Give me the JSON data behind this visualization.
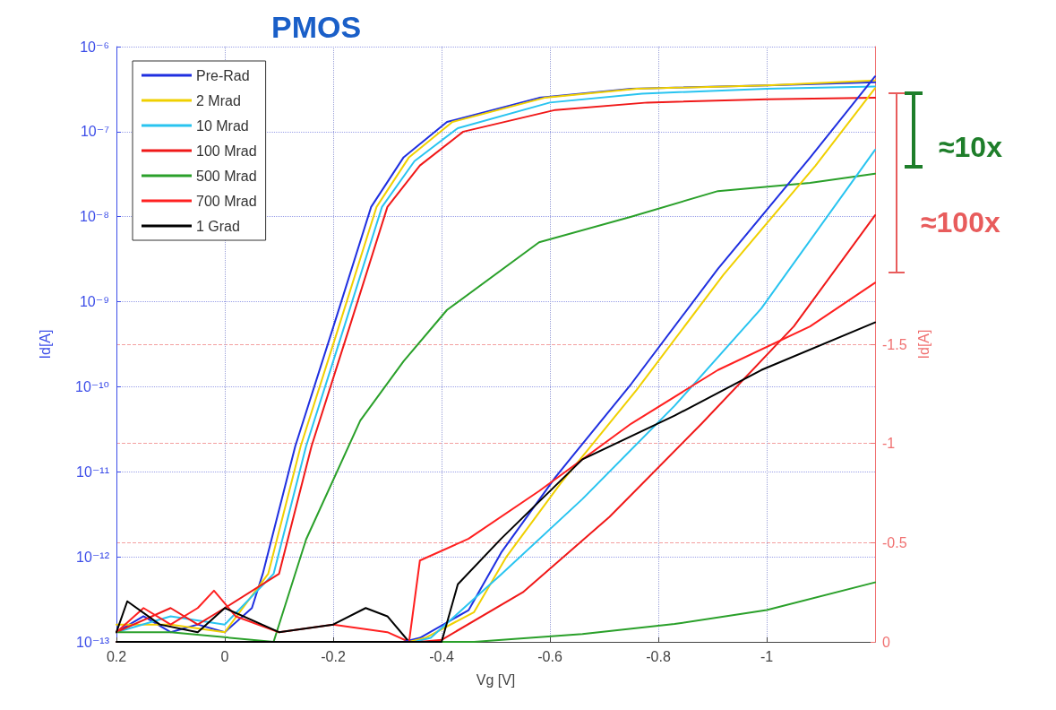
{
  "chart_data": {
    "type": "line",
    "title": "PMOS",
    "xlabel": "Vg [V]",
    "ylabel": "Id[A]",
    "y2label": "Id[A]",
    "xlim": [
      0.2,
      -1.2
    ],
    "xticks": [
      0.2,
      0,
      -0.2,
      -0.4,
      -0.6,
      -0.8,
      -1
    ],
    "ylim": [
      1e-13,
      1e-06
    ],
    "yticks": [
      {
        "value": 1e-13,
        "label": "10⁻¹³"
      },
      {
        "value": 1e-12,
        "label": "10⁻¹²"
      },
      {
        "value": 1e-11,
        "label": "10⁻¹¹"
      },
      {
        "value": 1e-10,
        "label": "10⁻¹⁰"
      },
      {
        "value": 1e-09,
        "label": "10⁻⁹"
      },
      {
        "value": 1e-08,
        "label": "10⁻⁸"
      },
      {
        "value": 1e-07,
        "label": "10⁻⁷"
      },
      {
        "value": 1e-06,
        "label": "10⁻⁶"
      }
    ],
    "y2lim": [
      0,
      -3
    ],
    "y2ticks": [
      0,
      -0.5,
      -1,
      -1.5
    ],
    "log": "y",
    "grid": true,
    "legend": "top left",
    "annotations": [
      "≈10x",
      "≈100x"
    ],
    "series": [
      {
        "name": "Pre-Rad",
        "color": "#1f2fe0",
        "x": [
          0.2,
          0.15,
          0.1,
          0.05,
          0,
          -0.05,
          -0.07,
          -0.13,
          -0.2,
          -0.27,
          -0.33,
          -0.41,
          -0.58,
          -0.75,
          -1.0,
          -1.2
        ],
        "values": [
          1.3e-13,
          2e-13,
          1.3e-13,
          1.6e-13,
          1.3e-13,
          2.5e-13,
          6.3e-13,
          2e-11,
          5e-10,
          1.3e-08,
          5e-08,
          1.3e-07,
          2.5e-07,
          3.2e-07,
          3.5e-07,
          3.8e-07
        ]
      },
      {
        "name": "2 Mrad",
        "color": "#f0d000",
        "x": [
          0.2,
          0.1,
          0,
          -0.08,
          -0.14,
          -0.21,
          -0.28,
          -0.34,
          -0.42,
          -0.59,
          -0.76,
          -1.0,
          -1.2
        ],
        "values": [
          1.6e-13,
          1.6e-13,
          1.3e-13,
          6.3e-13,
          2e-11,
          5e-10,
          1.3e-08,
          5e-08,
          1.3e-07,
          2.5e-07,
          3.2e-07,
          3.5e-07,
          4e-07
        ]
      },
      {
        "name": "10 Mrad",
        "color": "#29c4f0",
        "x": [
          0.2,
          0.1,
          0,
          -0.09,
          -0.15,
          -0.22,
          -0.29,
          -0.35,
          -0.43,
          -0.6,
          -0.77,
          -1.0,
          -1.2
        ],
        "values": [
          1.3e-13,
          2e-13,
          1.6e-13,
          6.3e-13,
          2e-11,
          5e-10,
          1.3e-08,
          4.5e-08,
          1.1e-07,
          2.2e-07,
          2.8e-07,
          3.2e-07,
          3.4e-07
        ]
      },
      {
        "name": "100 Mrad",
        "color": "#f01818",
        "x": [
          0.2,
          0.1,
          0.05,
          0,
          -0.1,
          -0.16,
          -0.23,
          -0.3,
          -0.36,
          -0.44,
          -0.61,
          -0.78,
          -1.0,
          -1.2
        ],
        "values": [
          1.3e-13,
          2.5e-13,
          1.6e-13,
          2.5e-13,
          6.3e-13,
          2e-11,
          5e-10,
          1.3e-08,
          4e-08,
          1e-07,
          1.8e-07,
          2.2e-07,
          2.4e-07,
          2.5e-07
        ]
      },
      {
        "name": "500 Mrad",
        "color": "#2aa02a",
        "x": [
          0.2,
          0.1,
          -0.09,
          -0.15,
          -0.25,
          -0.33,
          -0.41,
          -0.58,
          -0.75,
          -0.91,
          -1.08,
          -1.2
        ],
        "values": [
          1.3e-13,
          1.3e-13,
          1e-13,
          1.6e-12,
          4e-11,
          2e-10,
          8e-10,
          5e-09,
          1e-08,
          2e-08,
          2.5e-08,
          3.2e-08
        ]
      },
      {
        "name": "700 Mrad",
        "color": "#ff2020",
        "x": [
          0.2,
          0.15,
          0.1,
          0.05,
          0.02,
          -0.02,
          -0.1,
          -0.2,
          -0.3,
          -0.34
        ],
        "values": [
          1.3e-13,
          2.5e-13,
          1.6e-13,
          2.5e-13,
          4e-13,
          2e-13,
          1.3e-13,
          1.6e-13,
          1.3e-13,
          1e-13
        ]
      },
      {
        "name": "1 Grad",
        "color": "#000000",
        "x": [
          0.2,
          0.18,
          0.12,
          0.05,
          0,
          -0.1,
          -0.2,
          -0.26,
          -0.3,
          -0.34
        ],
        "values": [
          1.3e-13,
          3e-13,
          1.6e-13,
          1.3e-13,
          2.5e-13,
          1.3e-13,
          1.6e-13,
          2.5e-13,
          2e-13,
          1e-13
        ]
      },
      {
        "color": "#1f2fe0",
        "axis": "y2",
        "x": [
          -0.33,
          -0.36,
          -0.45,
          -0.51,
          -0.61,
          -0.75,
          -0.91,
          -1.08,
          -1.2
        ],
        "values": [
          0,
          -0.02,
          -0.16,
          -0.45,
          -0.83,
          -1.3,
          -1.88,
          -2.44,
          -2.85
        ]
      },
      {
        "color": "#f0d000",
        "axis": "y2",
        "x": [
          -0.34,
          -0.37,
          -0.46,
          -0.52,
          -0.62,
          -0.76,
          -0.92,
          -1.09,
          -1.2
        ],
        "values": [
          0,
          -0.02,
          -0.15,
          -0.43,
          -0.8,
          -1.27,
          -1.85,
          -2.4,
          -2.79
        ]
      },
      {
        "color": "#29c4f0",
        "axis": "y2",
        "x": [
          -0.35,
          -0.38,
          -0.51,
          -0.66,
          -0.83,
          -0.99,
          -1.2
        ],
        "values": [
          0,
          -0.02,
          -0.34,
          -0.72,
          -1.19,
          -1.68,
          -2.48
        ]
      },
      {
        "color": "#f01818",
        "axis": "y2",
        "x": [
          0.2,
          -0.36,
          -0.4,
          -0.55,
          -0.71,
          -0.88,
          -1.05,
          -1.2
        ],
        "values": [
          0,
          0,
          -0.01,
          -0.25,
          -0.63,
          -1.1,
          -1.59,
          -2.15
        ]
      },
      {
        "color": "#2aa02a",
        "axis": "y2",
        "x": [
          -0.2,
          -0.46,
          -0.66,
          -0.83,
          -1.0,
          -1.2
        ],
        "values": [
          0,
          0,
          -0.04,
          -0.09,
          -0.16,
          -0.3
        ]
      },
      {
        "color": "#ff2020",
        "axis": "y2",
        "x": [
          -0.34,
          -0.36,
          -0.45,
          -0.58,
          -0.75,
          -0.91,
          -1.08,
          -1.2
        ],
        "values": [
          0,
          -0.41,
          -0.52,
          -0.76,
          -1.1,
          -1.37,
          -1.59,
          -1.81
        ]
      },
      {
        "color": "#000000",
        "axis": "y2",
        "x": [
          0.2,
          -0.4,
          -0.43,
          -0.51,
          -0.66,
          -0.83,
          -0.99,
          -1.2
        ],
        "values": [
          0,
          0,
          -0.29,
          -0.52,
          -0.92,
          -1.14,
          -1.37,
          -1.61
        ]
      }
    ]
  }
}
